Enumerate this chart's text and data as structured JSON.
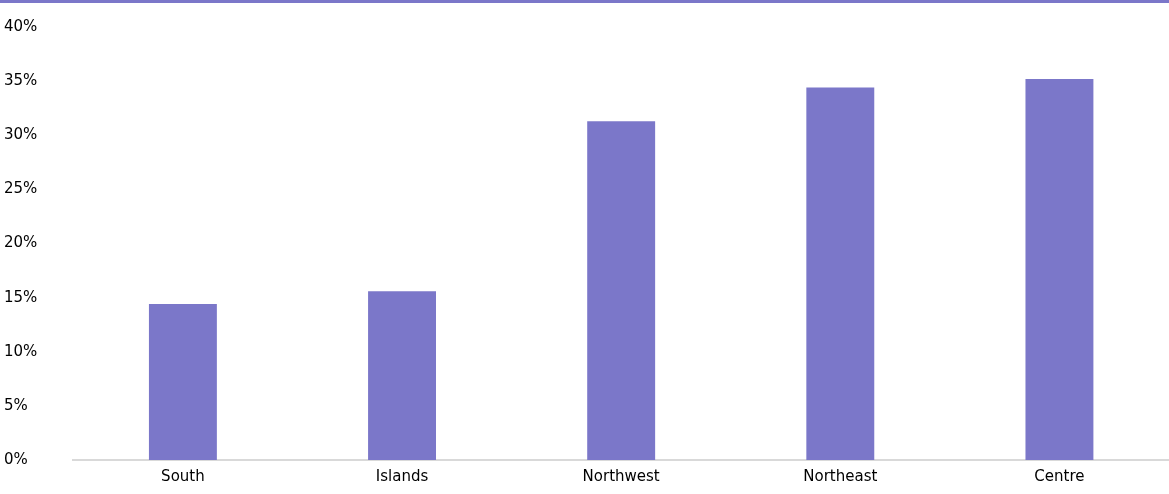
{
  "chart_data": {
    "type": "bar",
    "categories": [
      "South",
      "Islands",
      "Northwest",
      "Northeast",
      "Centre"
    ],
    "values": [
      14.4,
      15.6,
      31.3,
      34.4,
      35.2
    ],
    "color": "#7b77c9",
    "ylim": [
      0,
      40
    ],
    "yticks": [
      {
        "value": 0,
        "label": "0%"
      },
      {
        "value": 5,
        "label": "5%"
      },
      {
        "value": 10,
        "label": "10%"
      },
      {
        "value": 15,
        "label": "15%"
      },
      {
        "value": 20,
        "label": "20%"
      },
      {
        "value": 25,
        "label": "25%"
      },
      {
        "value": 30,
        "label": "30%"
      },
      {
        "value": 35,
        "label": "35%"
      },
      {
        "value": 40,
        "label": "40%"
      }
    ],
    "grid": false,
    "legend": false
  }
}
